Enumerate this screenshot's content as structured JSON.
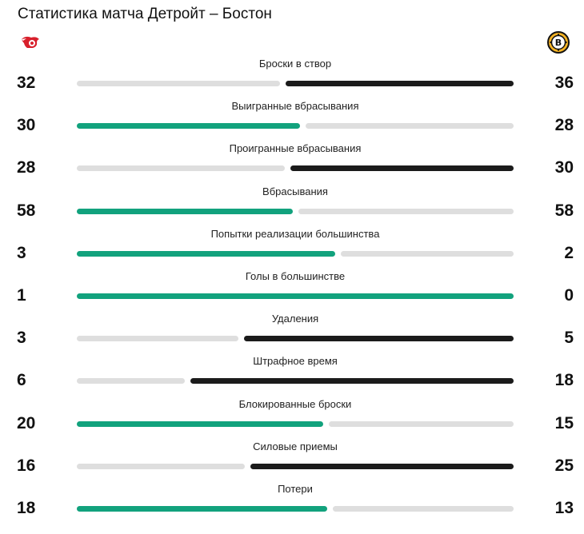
{
  "title": "Статистика матча Детройт – Бостон",
  "teams": {
    "home_logo_icon": "red-wings-logo-icon",
    "away_logo_icon": "bruins-logo-icon"
  },
  "colors": {
    "home_win": "#12a27d",
    "away_win": "#1b1b1b",
    "neutral": "#dedede"
  },
  "stats": [
    {
      "label": "Броски в створ",
      "home": "32",
      "away": "36",
      "h": 32,
      "a": 36
    },
    {
      "label": "Выигранные вбрасывания",
      "home": "30",
      "away": "28",
      "h": 30,
      "a": 28
    },
    {
      "label": "Проигранные вбрасывания",
      "home": "28",
      "away": "30",
      "h": 28,
      "a": 30
    },
    {
      "label": "Вбрасывания",
      "home": "58",
      "away": "58",
      "h": 58,
      "a": 58,
      "tie_winner": "home"
    },
    {
      "label": "Попытки реализации большинства",
      "home": "3",
      "away": "2",
      "h": 3,
      "a": 2
    },
    {
      "label": "Голы в большинстве",
      "home": "1",
      "away": "0",
      "h": 1,
      "a": 0
    },
    {
      "label": "Удаления",
      "home": "3",
      "away": "5",
      "h": 3,
      "a": 5
    },
    {
      "label": "Штрафное время",
      "home": "6",
      "away": "18",
      "h": 6,
      "a": 18
    },
    {
      "label": "Блокированные броски",
      "home": "20",
      "away": "15",
      "h": 20,
      "a": 15
    },
    {
      "label": "Силовые приемы",
      "home": "16",
      "away": "25",
      "h": 16,
      "a": 25
    },
    {
      "label": "Потери",
      "home": "18",
      "away": "13",
      "h": 18,
      "a": 13
    }
  ]
}
